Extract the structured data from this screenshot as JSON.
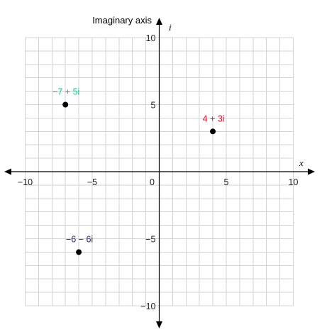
{
  "chart_data": {
    "type": "scatter",
    "xlabel": "x",
    "ylabel": "Imaginary axis",
    "ylabel_unit": "i",
    "xlim": [
      -10,
      10
    ],
    "ylim": [
      -10,
      10
    ],
    "grid": true,
    "x_ticks": [
      {
        "value": -10,
        "label": "−10"
      },
      {
        "value": -5,
        "label": "−5"
      },
      {
        "value": 0,
        "label": "0"
      },
      {
        "value": 5,
        "label": "5"
      },
      {
        "value": 10,
        "label": "10"
      }
    ],
    "y_ticks": [
      {
        "value": 10,
        "label": "10"
      },
      {
        "value": 5,
        "label": "5"
      },
      {
        "value": -5,
        "label": "−5"
      },
      {
        "value": -10,
        "label": "−10"
      }
    ],
    "points": [
      {
        "label": "4 + 3i",
        "x": 4,
        "y": 3,
        "label_color": "#e0102b"
      },
      {
        "label": "−7 + 5i",
        "x": -7,
        "y": 5,
        "label_color": "#1fb88a"
      },
      {
        "label": "−6 − 6i",
        "x": -6,
        "y": -6,
        "label_color": "#2a2a70"
      }
    ],
    "colors": {
      "grid": "#d3d3d3",
      "axis": "#000000",
      "point": "#000000"
    }
  }
}
